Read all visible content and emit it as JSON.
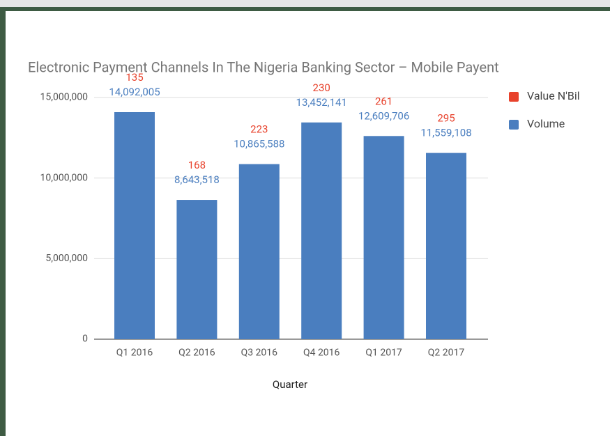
{
  "chart_data": {
    "type": "bar",
    "stacked": true,
    "title": "Electronic Payment Channels In The Nigeria Banking Sector – Mobile Payent",
    "x_label": "Quarter",
    "categories": [
      "Q1 2016",
      "Q2 2016",
      "Q3 2016",
      "Q4 2016",
      "Q1 2017",
      "Q2 2017"
    ],
    "series": [
      {
        "name": "Volume",
        "color": "#4a7ebf",
        "values": [
          14092005,
          8643518,
          10865588,
          13452141,
          12609706,
          11559108
        ],
        "value_labels": [
          "14,092,005",
          "8,643,518",
          "10,865,588",
          "13,452,141",
          "12,609,706",
          "11,559,108"
        ]
      },
      {
        "name": "Value N'Bil",
        "color": "#e8422c",
        "values": [
          135,
          168,
          223,
          230,
          261,
          295
        ]
      }
    ],
    "legend_order": [
      1,
      0
    ],
    "legend": "right",
    "ylim": [
      0,
      15000000
    ],
    "yticks": [
      0,
      {
        "value": 5000000,
        "label": "5,000,000"
      },
      {
        "value": 10000000,
        "label": "10,000,000"
      },
      {
        "value": 15000000,
        "label": "15,000,000"
      }
    ],
    "grid": true
  }
}
